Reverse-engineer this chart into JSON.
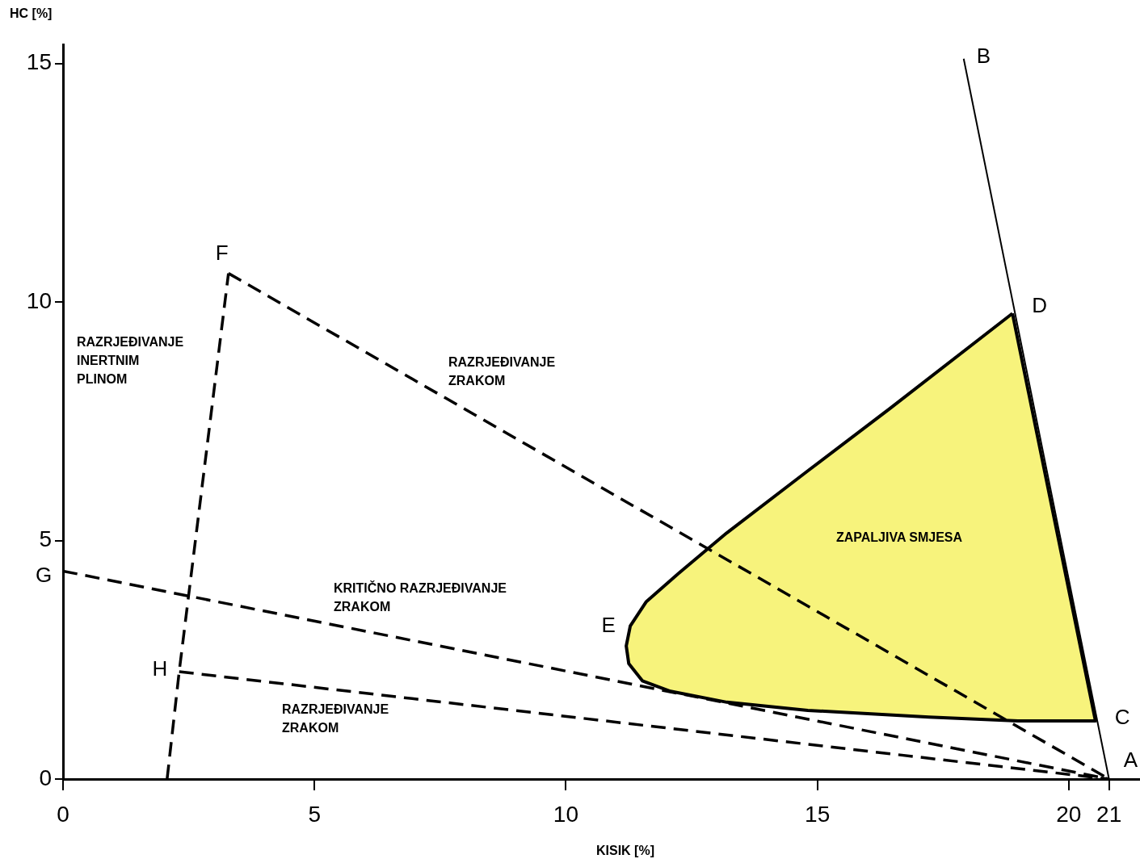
{
  "chart_data": {
    "type": "line",
    "xlabel": "KISIK [%]",
    "ylabel": "HC [%]",
    "xlim": [
      0,
      21.4
    ],
    "xticks": [
      0,
      5,
      10,
      15,
      20,
      {
        "value": 20.8,
        "label": "21"
      }
    ],
    "ylim": [
      0,
      15.4
    ],
    "yticks": [
      0,
      5,
      10,
      15
    ],
    "grid": false,
    "legend": false,
    "marker": "none",
    "series": [
      {
        "type": "line",
        "line_style": "solid",
        "color": "#000000",
        "x": [
          17.91,
          20.8
        ],
        "values": [
          15.1,
          0
        ]
      },
      {
        "type": "area",
        "color": "#f7f37c",
        "x": [
          18.88,
          16.42,
          14.81,
          13.2,
          12.24,
          11.6,
          11.28,
          11.2,
          11.25,
          11.52,
          12.08,
          13.2,
          14.81,
          17.22,
          18.99,
          20.53,
          18.88
        ],
        "values": [
          9.76,
          7.75,
          6.46,
          5.16,
          4.31,
          3.72,
          3.21,
          2.79,
          2.42,
          2.06,
          1.84,
          1.61,
          1.44,
          1.3,
          1.22,
          1.22,
          9.76
        ]
      },
      {
        "type": "line",
        "line_style": "dashed",
        "color": "#000000",
        "x": [
          3.29,
          20.8
        ],
        "values": [
          10.6,
          0
        ]
      },
      {
        "type": "line",
        "line_style": "dashed",
        "color": "#000000",
        "x": [
          0,
          20.8
        ],
        "values": [
          4.36,
          0
        ]
      },
      {
        "type": "line",
        "line_style": "dashed",
        "color": "#000000",
        "x": [
          2.07,
          2.31,
          3.29
        ],
        "values": [
          0,
          2.25,
          10.6
        ]
      },
      {
        "type": "line",
        "line_style": "dashed",
        "color": "#000000",
        "x": [
          2.31,
          20.8
        ],
        "values": [
          2.25,
          0
        ]
      }
    ],
    "annotations": [
      {
        "text": "A",
        "x": 20.8,
        "y": 0
      },
      {
        "text": "B",
        "x": 17.91,
        "y": 15.1
      },
      {
        "text": "C",
        "x": 20.53,
        "y": 1.22
      },
      {
        "text": "D",
        "x": 18.88,
        "y": 9.76
      },
      {
        "text": "E",
        "x": 11.2,
        "y": 2.79
      },
      {
        "text": "F",
        "x": 3.29,
        "y": 10.6
      },
      {
        "text": "G",
        "x": 0,
        "y": 4.36
      },
      {
        "text": "H",
        "x": 2.31,
        "y": 2.25
      },
      "RAZRJEĐIVANJE\nINERTNIM\nPLINOM",
      "RAZRJEĐIVANJE\nZRAKOM",
      "KRITIČNO RAZRJEĐIVANJE\nZRAKOM",
      "RAZRJEĐIVANJE\nZRAKOM",
      "ZAPALJIVA SMJESA"
    ]
  }
}
